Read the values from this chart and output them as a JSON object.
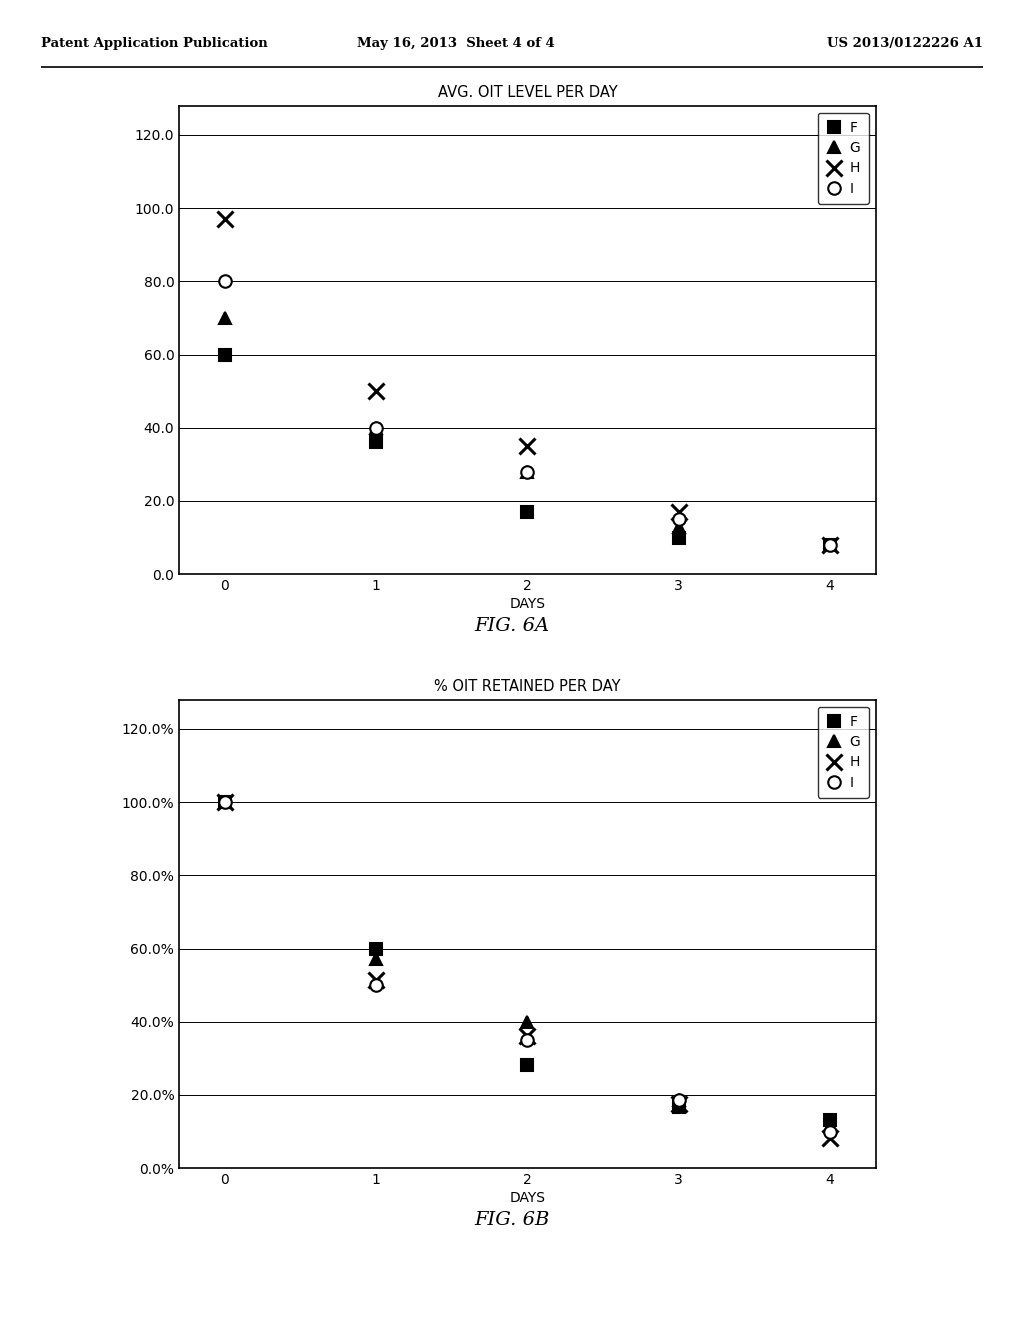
{
  "fig6a": {
    "title": "AVG. OIT LEVEL PER DAY",
    "xlabel": "DAYS",
    "xlim": [
      -0.3,
      4.3
    ],
    "ylim": [
      0.0,
      128.0
    ],
    "yticks": [
      0.0,
      20.0,
      40.0,
      60.0,
      80.0,
      100.0,
      120.0
    ],
    "xticks": [
      0,
      1,
      2,
      3,
      4
    ],
    "series": {
      "F": {
        "marker": "s",
        "days": [
          0,
          1,
          2,
          3,
          4
        ],
        "values": [
          60.0,
          36.0,
          17.0,
          10.0,
          8.0
        ],
        "filled": true
      },
      "G": {
        "marker": "^",
        "days": [
          0,
          1,
          2,
          3,
          4
        ],
        "values": [
          70.0,
          40.0,
          28.0,
          13.0,
          8.0
        ],
        "filled": true
      },
      "H": {
        "marker": "x",
        "days": [
          0,
          1,
          2,
          3,
          4
        ],
        "values": [
          97.0,
          50.0,
          35.0,
          17.0,
          8.0
        ],
        "filled": false
      },
      "I": {
        "marker": "o",
        "days": [
          0,
          1,
          2,
          3,
          4
        ],
        "values": [
          80.0,
          40.0,
          28.0,
          15.0,
          8.0
        ],
        "filled": false
      }
    }
  },
  "fig6b": {
    "title": "% OIT RETAINED PER DAY",
    "xlabel": "DAYS",
    "xlim": [
      -0.3,
      4.3
    ],
    "ylim": [
      0.0,
      128.0
    ],
    "ytick_values": [
      0.0,
      20.0,
      40.0,
      60.0,
      80.0,
      100.0,
      120.0
    ],
    "ytick_labels": [
      "0.0%",
      "20.0%",
      "40.0%",
      "60.0%",
      "80.0%",
      "100.0%",
      "120.0%"
    ],
    "xticks": [
      0,
      1,
      2,
      3,
      4
    ],
    "series": {
      "F": {
        "marker": "s",
        "days": [
          0,
          1,
          2,
          3,
          4
        ],
        "values": [
          100.0,
          60.0,
          28.3,
          16.7,
          13.3
        ],
        "filled": true
      },
      "G": {
        "marker": "^",
        "days": [
          0,
          1,
          2,
          3,
          4
        ],
        "values": [
          100.0,
          57.1,
          40.0,
          18.6,
          11.4
        ],
        "filled": true
      },
      "H": {
        "marker": "x",
        "days": [
          0,
          1,
          2,
          3,
          4
        ],
        "values": [
          100.0,
          51.5,
          36.1,
          17.5,
          8.2
        ],
        "filled": false
      },
      "I": {
        "marker": "o",
        "days": [
          0,
          1,
          2,
          3,
          4
        ],
        "values": [
          100.0,
          50.0,
          35.0,
          18.75,
          10.0
        ],
        "filled": false
      }
    }
  },
  "page_header_left": "Patent Application Publication",
  "page_header_mid": "May 16, 2013  Sheet 4 of 4",
  "page_header_right": "US 2013/0122226 A1",
  "fig6a_caption": "FIG. 6A",
  "fig6b_caption": "FIG. 6B",
  "background_color": "#ffffff",
  "legend_labels": [
    "F",
    "G",
    "H",
    "I"
  ],
  "legend_markers": [
    "s",
    "^",
    "x",
    "o"
  ],
  "legend_filled": [
    true,
    true,
    false,
    false
  ]
}
